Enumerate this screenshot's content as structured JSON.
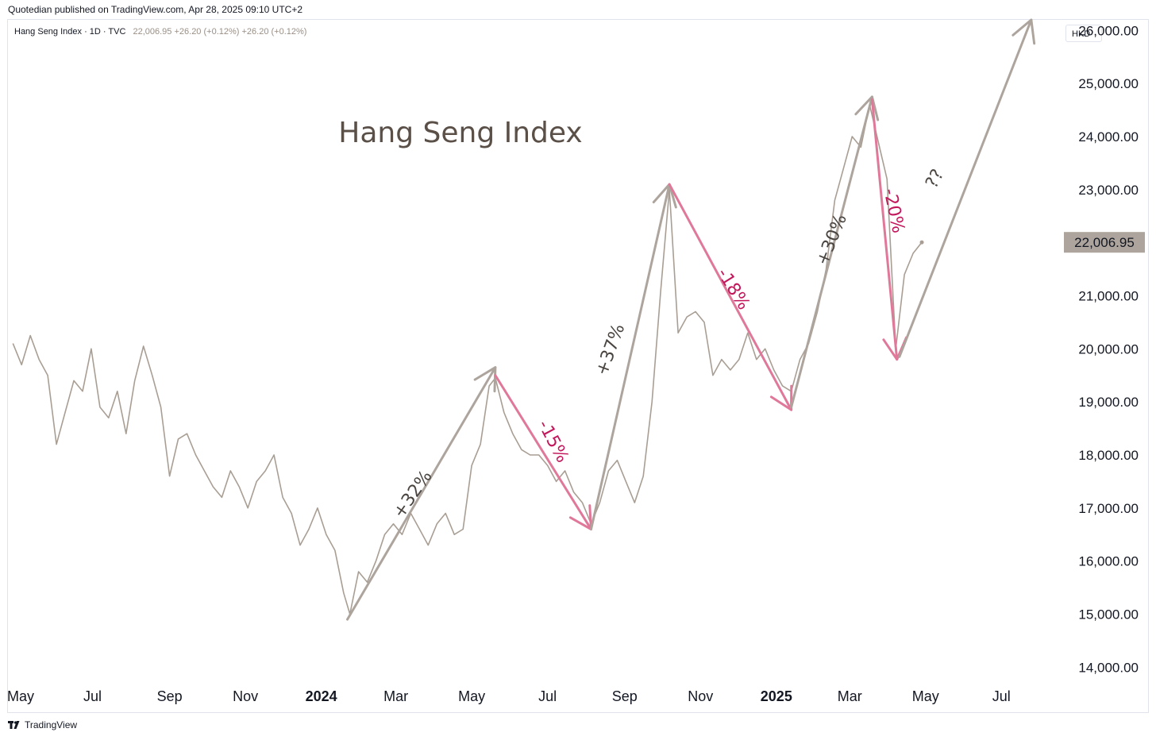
{
  "header": {
    "publisher": "Quotedian published on TradingView.com, Apr 28, 2025 09:10 UTC+2",
    "symbol": "Hang Seng Index · 1D · TVC",
    "ohlc": "22,006.95  +26.20 (+0.12%)  +26.20 (+0.12%)",
    "currency": "HKD"
  },
  "footer": {
    "brand": "TradingView",
    "logo_icon": "tradingview-logo-icon"
  },
  "chart_data": {
    "type": "line",
    "title": "Hang Seng Index",
    "price_label": "22,006.95",
    "line_color": "#a89e94",
    "up_arrow_color": "#ada59d",
    "down_arrow_color": "#e0789a",
    "up_text_color": "#4a4541",
    "down_text_color": "#c2185b",
    "ylim": [
      13600,
      26200
    ],
    "y_ticks": [
      {
        "value": 14000,
        "label": "14,000.00"
      },
      {
        "value": 15000,
        "label": "15,000.00"
      },
      {
        "value": 16000,
        "label": "16,000.00"
      },
      {
        "value": 17000,
        "label": "17,000.00"
      },
      {
        "value": 18000,
        "label": "18,000.00"
      },
      {
        "value": 19000,
        "label": "19,000.00"
      },
      {
        "value": 20000,
        "label": "20,000.00"
      },
      {
        "value": 21000,
        "label": "21,000.00"
      },
      {
        "value": 22000,
        "label": "22,000.00"
      },
      {
        "value": 23000,
        "label": "23,000.00"
      },
      {
        "value": 24000,
        "label": "24,000.00"
      },
      {
        "value": 25000,
        "label": "25,000.00"
      },
      {
        "value": 26000,
        "label": "26,000.00"
      }
    ],
    "x_ticks": [
      {
        "date": "2023-05-01",
        "label": "May",
        "bold": false
      },
      {
        "date": "2023-07-01",
        "label": "Jul",
        "bold": false
      },
      {
        "date": "2023-09-01",
        "label": "Sep",
        "bold": false
      },
      {
        "date": "2023-11-01",
        "label": "Nov",
        "bold": false
      },
      {
        "date": "2024-01-01",
        "label": "2024",
        "bold": true
      },
      {
        "date": "2024-03-01",
        "label": "Mar",
        "bold": false
      },
      {
        "date": "2024-05-01",
        "label": "May",
        "bold": false
      },
      {
        "date": "2024-07-01",
        "label": "Jul",
        "bold": false
      },
      {
        "date": "2024-09-01",
        "label": "Sep",
        "bold": false
      },
      {
        "date": "2024-11-01",
        "label": "Nov",
        "bold": false
      },
      {
        "date": "2025-01-01",
        "label": "2025",
        "bold": true
      },
      {
        "date": "2025-03-01",
        "label": "Mar",
        "bold": false
      },
      {
        "date": "2025-05-01",
        "label": "May",
        "bold": false
      },
      {
        "date": "2025-07-01",
        "label": "Jul",
        "bold": false
      }
    ],
    "series": [
      {
        "points": [
          [
            "2023-04-28",
            20100
          ],
          [
            "2023-05-05",
            19700
          ],
          [
            "2023-05-12",
            20250
          ],
          [
            "2023-05-19",
            19800
          ],
          [
            "2023-05-26",
            19500
          ],
          [
            "2023-06-02",
            18200
          ],
          [
            "2023-06-09",
            18800
          ],
          [
            "2023-06-16",
            19400
          ],
          [
            "2023-06-23",
            19200
          ],
          [
            "2023-06-30",
            20000
          ],
          [
            "2023-07-07",
            18900
          ],
          [
            "2023-07-14",
            18700
          ],
          [
            "2023-07-21",
            19200
          ],
          [
            "2023-07-28",
            18400
          ],
          [
            "2023-08-04",
            19400
          ],
          [
            "2023-08-11",
            20050
          ],
          [
            "2023-08-18",
            19500
          ],
          [
            "2023-08-25",
            18900
          ],
          [
            "2023-09-01",
            17600
          ],
          [
            "2023-09-08",
            18300
          ],
          [
            "2023-09-15",
            18400
          ],
          [
            "2023-09-22",
            18000
          ],
          [
            "2023-09-29",
            17700
          ],
          [
            "2023-10-06",
            17400
          ],
          [
            "2023-10-13",
            17200
          ],
          [
            "2023-10-20",
            17700
          ],
          [
            "2023-10-27",
            17400
          ],
          [
            "2023-11-03",
            17000
          ],
          [
            "2023-11-10",
            17500
          ],
          [
            "2023-11-17",
            17700
          ],
          [
            "2023-11-24",
            18000
          ],
          [
            "2023-12-01",
            17200
          ],
          [
            "2023-12-08",
            16900
          ],
          [
            "2023-12-15",
            16300
          ],
          [
            "2023-12-22",
            16600
          ],
          [
            "2023-12-29",
            17000
          ],
          [
            "2024-01-05",
            16500
          ],
          [
            "2024-01-12",
            16200
          ],
          [
            "2024-01-19",
            15400
          ],
          [
            "2024-01-24",
            15000
          ],
          [
            "2024-01-31",
            15800
          ],
          [
            "2024-02-07",
            15600
          ],
          [
            "2024-02-14",
            16000
          ],
          [
            "2024-02-21",
            16500
          ],
          [
            "2024-02-28",
            16700
          ],
          [
            "2024-03-06",
            16500
          ],
          [
            "2024-03-13",
            16900
          ],
          [
            "2024-03-20",
            16600
          ],
          [
            "2024-03-27",
            16300
          ],
          [
            "2024-04-03",
            16700
          ],
          [
            "2024-04-10",
            16900
          ],
          [
            "2024-04-17",
            16500
          ],
          [
            "2024-04-24",
            16600
          ],
          [
            "2024-05-01",
            17800
          ],
          [
            "2024-05-08",
            18200
          ],
          [
            "2024-05-15",
            19300
          ],
          [
            "2024-05-20",
            19450
          ],
          [
            "2024-05-27",
            18800
          ],
          [
            "2024-06-03",
            18400
          ],
          [
            "2024-06-10",
            18100
          ],
          [
            "2024-06-17",
            18000
          ],
          [
            "2024-06-24",
            18000
          ],
          [
            "2024-07-01",
            17800
          ],
          [
            "2024-07-08",
            17500
          ],
          [
            "2024-07-15",
            17700
          ],
          [
            "2024-07-22",
            17300
          ],
          [
            "2024-07-29",
            17100
          ],
          [
            "2024-08-05",
            16700
          ],
          [
            "2024-08-12",
            17100
          ],
          [
            "2024-08-19",
            17700
          ],
          [
            "2024-08-26",
            17900
          ],
          [
            "2024-09-02",
            17500
          ],
          [
            "2024-09-09",
            17100
          ],
          [
            "2024-09-16",
            17600
          ],
          [
            "2024-09-23",
            19000
          ],
          [
            "2024-09-30",
            21100
          ],
          [
            "2024-10-07",
            23000
          ],
          [
            "2024-10-14",
            20300
          ],
          [
            "2024-10-21",
            20600
          ],
          [
            "2024-10-28",
            20700
          ],
          [
            "2024-11-04",
            20500
          ],
          [
            "2024-11-11",
            19500
          ],
          [
            "2024-11-18",
            19800
          ],
          [
            "2024-11-25",
            19600
          ],
          [
            "2024-12-02",
            19800
          ],
          [
            "2024-12-09",
            20300
          ],
          [
            "2024-12-16",
            19800
          ],
          [
            "2024-12-23",
            20000
          ],
          [
            "2024-12-30",
            19600
          ],
          [
            "2025-01-06",
            19300
          ],
          [
            "2025-01-13",
            19200
          ],
          [
            "2025-01-20",
            19800
          ],
          [
            "2025-01-27",
            20100
          ],
          [
            "2025-02-03",
            20700
          ],
          [
            "2025-02-10",
            21500
          ],
          [
            "2025-02-17",
            22800
          ],
          [
            "2025-02-24",
            23400
          ],
          [
            "2025-03-03",
            24000
          ],
          [
            "2025-03-10",
            23800
          ],
          [
            "2025-03-17",
            24600
          ],
          [
            "2025-03-24",
            23900
          ],
          [
            "2025-03-31",
            23200
          ],
          [
            "2025-04-07",
            20000
          ],
          [
            "2025-04-14",
            21400
          ],
          [
            "2025-04-21",
            21800
          ],
          [
            "2025-04-28",
            22006.95
          ]
        ]
      }
    ],
    "arrows": [
      {
        "kind": "up",
        "from": [
          "2024-01-22",
          14900
        ],
        "to": [
          "2024-05-20",
          19650
        ]
      },
      {
        "kind": "down",
        "from": [
          "2024-05-20",
          19500
        ],
        "to": [
          "2024-08-05",
          16600
        ]
      },
      {
        "kind": "up",
        "from": [
          "2024-08-05",
          16600
        ],
        "to": [
          "2024-10-07",
          23100
        ]
      },
      {
        "kind": "down",
        "from": [
          "2024-10-07",
          23100
        ],
        "to": [
          "2025-01-13",
          18850
        ]
      },
      {
        "kind": "up",
        "from": [
          "2025-01-13",
          18900
        ],
        "to": [
          "2025-03-19",
          24750
        ]
      },
      {
        "kind": "down",
        "from": [
          "2025-03-19",
          24700
        ],
        "to": [
          "2025-04-08",
          19800
        ]
      },
      {
        "kind": "up",
        "from": [
          "2025-04-10",
          19850
        ],
        "to": [
          "2025-07-25",
          26200
        ]
      }
    ],
    "annotations": [
      {
        "text": "+32%",
        "kind": "up",
        "at": [
          "2024-03-15",
          17250
        ],
        "rotate": -55
      },
      {
        "text": "-15%",
        "kind": "down",
        "at": [
          "2024-07-05",
          18250
        ],
        "rotate": 62
      },
      {
        "text": "+37%",
        "kind": "up",
        "at": [
          "2024-08-21",
          19980
        ],
        "rotate": -70
      },
      {
        "text": "-18%",
        "kind": "down",
        "at": [
          "2024-11-27",
          21120
        ],
        "rotate": 58
      },
      {
        "text": "+30%",
        "kind": "up",
        "at": [
          "2025-02-15",
          22050
        ],
        "rotate": -68
      },
      {
        "text": "-20%",
        "kind": "down",
        "at": [
          "2025-04-05",
          22600
        ],
        "rotate": 78
      },
      {
        "text": "??",
        "kind": "up",
        "at": [
          "2025-05-09",
          23200
        ],
        "rotate": -62
      }
    ]
  }
}
